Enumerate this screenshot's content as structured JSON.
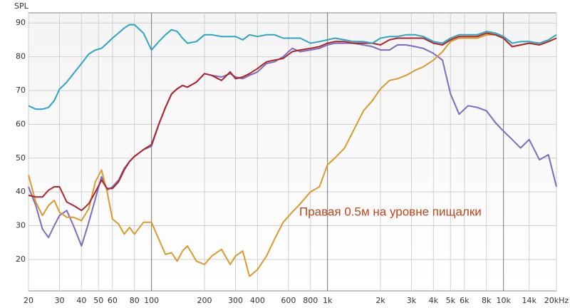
{
  "chart_data": {
    "type": "line",
    "y_label": "SPL",
    "annotation": "Правая 0.5м на уровне пищалки",
    "xscale": "log",
    "grid": true,
    "xlim": [
      20,
      20000
    ],
    "ylim": [
      10.7,
      93
    ],
    "yticks": [
      20,
      30,
      40,
      50,
      60,
      70,
      80,
      90
    ],
    "xticks": [
      20,
      30,
      40,
      50,
      60,
      80,
      100,
      200,
      300,
      400,
      600,
      800,
      {
        "value": 1000,
        "label": "1k"
      },
      {
        "value": 2000,
        "label": "2k"
      },
      {
        "value": 3000,
        "label": "3k"
      },
      {
        "value": 4000,
        "label": "4k"
      },
      {
        "value": 5000,
        "label": "5k"
      },
      {
        "value": 6000,
        "label": "6k"
      },
      {
        "value": 8000,
        "label": "8k"
      },
      {
        "value": 10000,
        "label": "10k"
      },
      {
        "value": 14000,
        "label": "14k"
      },
      {
        "value": 20000,
        "label": "20kHz"
      }
    ],
    "x": [
      20,
      22,
      24,
      26,
      28,
      30,
      33,
      36,
      40,
      44,
      48,
      52,
      56,
      60,
      65,
      70,
      75,
      80,
      90,
      100,
      110,
      120,
      130,
      140,
      150,
      160,
      180,
      200,
      220,
      250,
      280,
      300,
      330,
      360,
      400,
      450,
      500,
      560,
      630,
      700,
      800,
      900,
      1000,
      1100,
      1250,
      1400,
      1600,
      1800,
      2000,
      2250,
      2500,
      2800,
      3150,
      3500,
      4000,
      4500,
      5000,
      5600,
      6300,
      7100,
      8000,
      9000,
      10000,
      11200,
      12500,
      14000,
      16000,
      18000,
      20000
    ],
    "series": [
      {
        "color": "#7b6cc2",
        "values": [
          41.5,
          36,
          29,
          26.5,
          30,
          33,
          34.5,
          30,
          24,
          31,
          38,
          44.5,
          40.5,
          41.5,
          43.5,
          47,
          49,
          50.5,
          52.5,
          53.5,
          60,
          65,
          69,
          70.5,
          71.5,
          71,
          72.5,
          75,
          74.5,
          74,
          75,
          74,
          73.5,
          74.5,
          75.5,
          78,
          78.5,
          80,
          82.5,
          81.5,
          82,
          82.5,
          83.5,
          84,
          84,
          84,
          83.5,
          83,
          82,
          82,
          83.5,
          83.5,
          83,
          82.5,
          81,
          79,
          69,
          63,
          65.5,
          65,
          64,
          60.5,
          58,
          55.5,
          53,
          55.5,
          49.5,
          51,
          41.5
        ]
      },
      {
        "color": "#d99a2b",
        "values": [
          45,
          37,
          33,
          36,
          37.5,
          34,
          32.5,
          32.5,
          31.5,
          35,
          43,
          46.5,
          40,
          32,
          30.5,
          27.5,
          29.5,
          27.5,
          31,
          31,
          26,
          21.5,
          22,
          19.5,
          22.5,
          24,
          19.5,
          18.5,
          21,
          23,
          18.5,
          21,
          22.5,
          15,
          17,
          21,
          26,
          31,
          34,
          36.5,
          40,
          41.5,
          48,
          50,
          53,
          58,
          64,
          67,
          70.5,
          73,
          73.5,
          74.5,
          76,
          77,
          79,
          81.5,
          84.5,
          85.5,
          85.5,
          85.5,
          86.5,
          86.5,
          85.5,
          83,
          83.5,
          84,
          83.5,
          84.5,
          85.5
        ]
      },
      {
        "color": "#b0232a",
        "values": [
          39,
          38.5,
          38.5,
          40.5,
          41.5,
          41.5,
          37,
          36,
          34.5,
          36.5,
          40,
          43.5,
          41,
          41,
          43,
          46.5,
          49,
          50.5,
          52.5,
          54,
          60,
          65,
          69,
          70.5,
          71.5,
          71,
          72.5,
          75,
          74.5,
          73,
          75.5,
          73.5,
          74,
          75,
          76.5,
          78.5,
          79,
          79.5,
          81.5,
          82,
          82.5,
          83,
          84,
          84.5,
          84.5,
          84,
          84,
          84,
          83.5,
          85,
          85.5,
          85.5,
          85.5,
          85.5,
          84,
          83.5,
          85,
          86,
          86,
          86,
          87,
          86.5,
          85.5,
          83,
          83.5,
          84,
          83.5,
          84.5,
          85.5
        ]
      },
      {
        "color": "#2aa5c4",
        "values": [
          65.5,
          64.5,
          64.5,
          65,
          67,
          70.4,
          72.5,
          75,
          78,
          80.8,
          82,
          82.5,
          84,
          85.5,
          87,
          88.5,
          89.5,
          89.5,
          87,
          82,
          84.5,
          86.5,
          88,
          87.5,
          85.5,
          84,
          84.5,
          86.5,
          86.5,
          86,
          86,
          86,
          85,
          86.5,
          86,
          86.5,
          86.5,
          85.5,
          85.5,
          85.5,
          84,
          84.5,
          85,
          85.5,
          85,
          84.5,
          84.5,
          84,
          85.5,
          86,
          86,
          86.5,
          86.5,
          86,
          84.5,
          84,
          85.5,
          86.5,
          86.5,
          86.5,
          87.5,
          87,
          86,
          84,
          84.5,
          84.5,
          84,
          85,
          86.5
        ]
      }
    ]
  }
}
